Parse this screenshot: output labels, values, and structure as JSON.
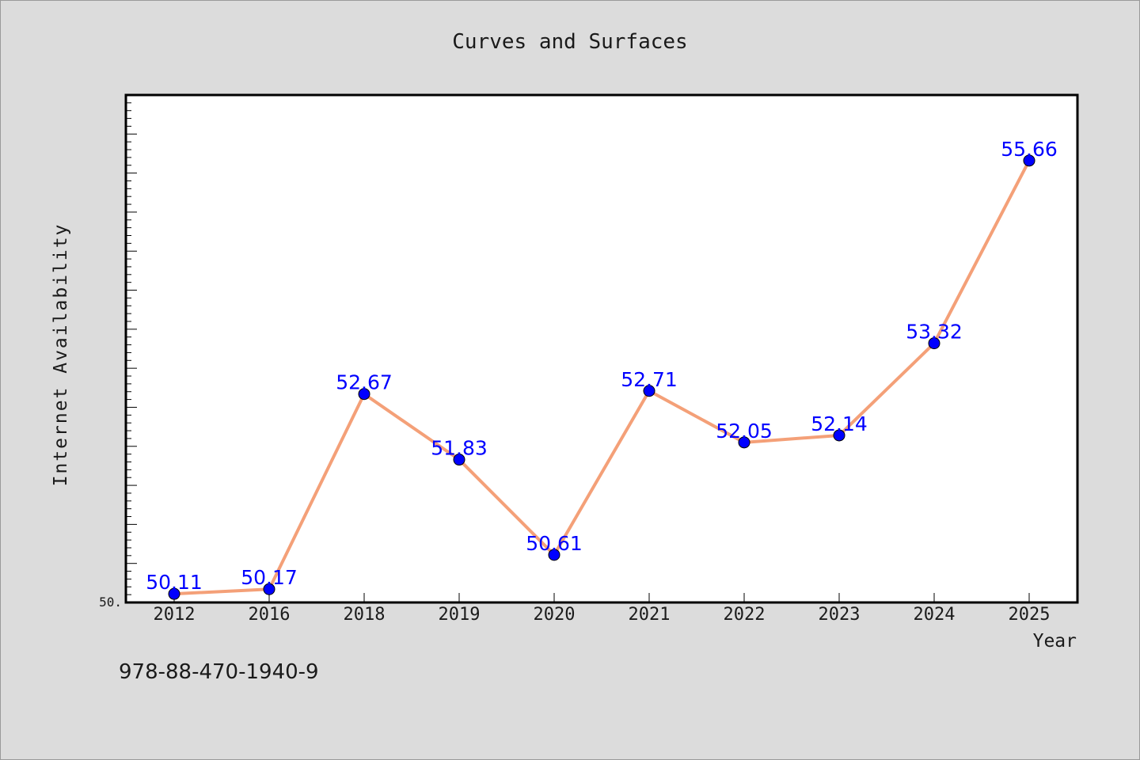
{
  "chart_data": {
    "type": "line",
    "title": "Curves and Surfaces",
    "xlabel": "Year",
    "ylabel": "Internet Availability",
    "categories": [
      "2012",
      "2016",
      "2018",
      "2019",
      "2020",
      "2021",
      "2022",
      "2023",
      "2024",
      "2025"
    ],
    "series": [
      {
        "values": [
          50.11,
          50.17,
          52.67,
          51.83,
          50.61,
          52.71,
          52.05,
          52.14,
          53.32,
          55.66
        ],
        "labels": [
          "50.11",
          "50.17",
          "52.67",
          "51.83",
          "50.61",
          "52.71",
          "52.05",
          "52.14",
          "53.32",
          "55.66"
        ]
      }
    ],
    "ylim": [
      50.0,
      56.5
    ],
    "y_tick_labels": [
      "50."
    ],
    "grid": false,
    "colors": {
      "line": "#f4a078",
      "marker": "#0000ff",
      "label": "#0000ff",
      "plot_background": "#ffffff",
      "figure_background": "#dcdcdc"
    }
  },
  "footer": {
    "code": "978-88-470-1940-9"
  }
}
